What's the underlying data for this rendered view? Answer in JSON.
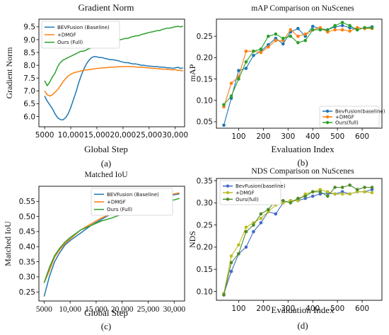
{
  "figure": {
    "background": "#ffffff"
  },
  "chart_data": [
    {
      "id": "gradient-norm",
      "type": "line",
      "title": "Gradient Norm",
      "xlabel": "Global Step",
      "ylabel": "Gradient Norm",
      "caption": "(a)",
      "xlim": [
        3900,
        31800
      ],
      "ylim": [
        5.6,
        9.8
      ],
      "xticks": [
        5000,
        10000,
        15000,
        20000,
        25000,
        30000
      ],
      "xtick_labels": [
        "5000",
        "10,000",
        "15,000",
        "20,000",
        "25,000",
        "30,000"
      ],
      "yticks": [
        6.0,
        6.5,
        7.0,
        7.5,
        8.0,
        8.5,
        9.0,
        9.5
      ],
      "ytick_labels": [
        "6.0",
        "6.5",
        "7.0",
        "7.5",
        "8.0",
        "8.5",
        "9.0",
        "9.5"
      ],
      "grid": false,
      "legend": "top-left",
      "series": [
        {
          "name": "BEVFusion (Baseline)",
          "color": "#1f77b4",
          "x": [
            5000,
            5500,
            6000,
            6500,
            7000,
            7500,
            8000,
            8500,
            9000,
            9500,
            10000,
            10500,
            11000,
            11500,
            12000,
            12500,
            13000,
            13500,
            14000,
            14500,
            15000,
            15500,
            16000,
            16500,
            17000,
            17500,
            18000,
            18500,
            19000,
            19500,
            20000,
            20500,
            21000,
            21500,
            22000,
            22500,
            23000,
            23500,
            24000,
            24500,
            25000,
            25500,
            26000,
            26500,
            27000,
            27500,
            28000,
            28500,
            29000,
            29500,
            30000,
            30500,
            31000,
            31500
          ],
          "y": [
            6.8,
            6.6,
            6.45,
            6.3,
            6.1,
            5.95,
            5.88,
            5.87,
            5.95,
            6.1,
            6.35,
            6.65,
            6.95,
            7.3,
            7.6,
            7.85,
            8.05,
            8.2,
            8.3,
            8.34,
            8.33,
            8.3,
            8.3,
            8.27,
            8.25,
            8.22,
            8.22,
            8.2,
            8.18,
            8.15,
            8.12,
            8.1,
            8.1,
            8.07,
            8.05,
            8.05,
            8.03,
            8.0,
            8.0,
            7.98,
            7.97,
            7.96,
            7.95,
            7.95,
            7.93,
            7.93,
            7.92,
            7.9,
            7.9,
            7.88,
            7.9,
            7.92,
            7.88,
            7.9
          ]
        },
        {
          "name": "+DMGF",
          "color": "#ff7f0e",
          "x": [
            5000,
            5500,
            6000,
            6500,
            7000,
            7500,
            8000,
            8500,
            9000,
            9500,
            10000,
            10500,
            11000,
            11500,
            12000,
            12500,
            13000,
            13500,
            14000,
            14500,
            15000,
            15500,
            16000,
            16500,
            17000,
            17500,
            18000,
            18500,
            19000,
            19500,
            20000,
            20500,
            21000,
            21500,
            22000,
            22500,
            23000,
            23500,
            24000,
            24500,
            25000,
            25500,
            26000,
            26500,
            27000,
            27500,
            28000,
            28500,
            29000,
            29500,
            30000,
            30500,
            31000,
            31500
          ],
          "y": [
            7.0,
            6.85,
            6.8,
            6.85,
            6.95,
            7.05,
            7.2,
            7.35,
            7.48,
            7.58,
            7.65,
            7.7,
            7.73,
            7.75,
            7.78,
            7.8,
            7.82,
            7.83,
            7.85,
            7.86,
            7.88,
            7.88,
            7.9,
            7.9,
            7.91,
            7.92,
            7.93,
            7.93,
            7.94,
            7.94,
            7.95,
            7.95,
            7.95,
            7.94,
            7.95,
            7.93,
            7.92,
            7.93,
            7.92,
            7.9,
            7.9,
            7.88,
            7.88,
            7.87,
            7.86,
            7.85,
            7.85,
            7.84,
            7.83,
            7.82,
            7.83,
            7.8,
            7.8,
            7.78
          ]
        },
        {
          "name": "Ours (Full)",
          "color": "#2ca02c",
          "x": [
            5000,
            5500,
            6000,
            6500,
            7000,
            7500,
            8000,
            8500,
            9000,
            9500,
            10000,
            10500,
            11000,
            11500,
            12000,
            12500,
            13000,
            13500,
            14000,
            14500,
            15000,
            15500,
            16000,
            16500,
            17000,
            17500,
            18000,
            18500,
            19000,
            19500,
            20000,
            20500,
            21000,
            21500,
            22000,
            22500,
            23000,
            23500,
            24000,
            24500,
            25000,
            25500,
            26000,
            26500,
            27000,
            27500,
            28000,
            28500,
            29000,
            29500,
            30000,
            30500,
            31000,
            31500
          ],
          "y": [
            7.4,
            7.2,
            7.35,
            7.55,
            7.7,
            7.95,
            8.1,
            8.2,
            8.25,
            8.3,
            8.35,
            8.4,
            8.45,
            8.5,
            8.55,
            8.55,
            8.6,
            8.65,
            8.68,
            8.7,
            8.75,
            8.75,
            8.8,
            8.85,
            8.85,
            8.9,
            8.92,
            8.95,
            8.95,
            9.0,
            9.02,
            9.05,
            9.05,
            9.1,
            9.12,
            9.15,
            9.15,
            9.2,
            9.22,
            9.25,
            9.28,
            9.3,
            9.32,
            9.35,
            9.35,
            9.4,
            9.42,
            9.45,
            9.45,
            9.48,
            9.5,
            9.52,
            9.5,
            9.52
          ]
        }
      ]
    },
    {
      "id": "map-comparison",
      "type": "line",
      "title": "mAP Comparison on NuScenes",
      "xlabel": "Evaluation Index",
      "ylabel": "mAP",
      "caption": "(b)",
      "xlim": [
        10,
        680
      ],
      "ylim": [
        0.035,
        0.29
      ],
      "xticks": [
        100,
        200,
        300,
        400,
        500,
        600
      ],
      "xtick_labels": [
        "100",
        "200",
        "300",
        "400",
        "500",
        "600"
      ],
      "yticks": [
        0.05,
        0.1,
        0.15,
        0.2,
        0.25
      ],
      "ytick_labels": [
        "0.05",
        "0.10",
        "0.15",
        "0.20",
        "0.25"
      ],
      "grid": false,
      "legend": "bottom-right",
      "series": [
        {
          "name": "BevFusion(baseline)",
          "color": "#1f77b4",
          "x": [
            40,
            70,
            100,
            130,
            160,
            190,
            220,
            250,
            280,
            310,
            340,
            370,
            400,
            430,
            460,
            490,
            520,
            550,
            580,
            610,
            640
          ],
          "y": [
            0.042,
            0.105,
            0.17,
            0.175,
            0.205,
            0.215,
            0.23,
            0.245,
            0.232,
            0.26,
            0.268,
            0.25,
            0.273,
            0.268,
            0.265,
            0.272,
            0.275,
            0.27,
            0.265,
            0.27,
            0.272
          ]
        },
        {
          "name": "+DMGF",
          "color": "#ff7f0e",
          "x": [
            40,
            70,
            100,
            130,
            160,
            190,
            220,
            250,
            280,
            310,
            340,
            370,
            400,
            430,
            460,
            490,
            520,
            550,
            580,
            610,
            640
          ],
          "y": [
            0.085,
            0.14,
            0.155,
            0.215,
            0.215,
            0.212,
            0.225,
            0.24,
            0.24,
            0.265,
            0.25,
            0.255,
            0.265,
            0.27,
            0.26,
            0.265,
            0.265,
            0.262,
            0.27,
            0.268,
            0.268
          ]
        },
        {
          "name": "Ours(full)",
          "color": "#2ca02c",
          "x": [
            40,
            70,
            100,
            130,
            160,
            190,
            220,
            250,
            280,
            310,
            340,
            370,
            400,
            430,
            460,
            490,
            520,
            550,
            580,
            610,
            640
          ],
          "y": [
            0.09,
            0.11,
            0.15,
            0.19,
            0.215,
            0.22,
            0.25,
            0.255,
            0.245,
            0.25,
            0.235,
            0.24,
            0.265,
            0.265,
            0.265,
            0.275,
            0.282,
            0.275,
            0.265,
            0.27,
            0.27
          ]
        }
      ]
    },
    {
      "id": "matched-iou",
      "type": "line",
      "title": "Matched  IoU",
      "xlabel": "Global Step",
      "ylabel": "Matched  IoU",
      "caption": "(c)",
      "xlim": [
        4000,
        32000
      ],
      "ylim": [
        0.22,
        0.6
      ],
      "xticks": [
        5000,
        10000,
        15000,
        20000,
        25000,
        30000
      ],
      "xtick_labels": [
        "5000",
        "10,000",
        "15,000",
        "20,000",
        "25,000",
        "30,000"
      ],
      "yticks": [
        0.25,
        0.3,
        0.35,
        0.4,
        0.45,
        0.5,
        0.55
      ],
      "ytick_labels": [
        "0.25",
        "0.30",
        "0.35",
        "0.40",
        "0.45",
        "0.50",
        "0.55"
      ],
      "grid": false,
      "legend": "top-center",
      "series": [
        {
          "name": "BEVFusion (Baseline)",
          "color": "#1f77b4",
          "x": [
            5000,
            6000,
            7000,
            8000,
            9000,
            10000,
            12000,
            14000,
            16000,
            18000,
            20000,
            22000,
            24000,
            26000,
            28000,
            30000,
            31000
          ],
          "y": [
            0.235,
            0.3,
            0.35,
            0.38,
            0.405,
            0.42,
            0.445,
            0.47,
            0.49,
            0.51,
            0.525,
            0.535,
            0.545,
            0.555,
            0.565,
            0.572,
            0.575
          ]
        },
        {
          "name": "+DMGF",
          "color": "#ff7f0e",
          "x": [
            5000,
            6000,
            7000,
            8000,
            9000,
            10000,
            12000,
            14000,
            16000,
            18000,
            20000,
            22000,
            24000,
            26000,
            28000,
            30000,
            31000
          ],
          "y": [
            0.28,
            0.32,
            0.365,
            0.39,
            0.41,
            0.425,
            0.455,
            0.475,
            0.495,
            0.51,
            0.522,
            0.535,
            0.545,
            0.556,
            0.565,
            0.575,
            0.578
          ]
        },
        {
          "name": "Ours (Full)",
          "color": "#2ca02c",
          "x": [
            5000,
            6000,
            7000,
            8000,
            9000,
            10000,
            12000,
            14000,
            16000,
            18000,
            20000,
            22000,
            24000,
            26000,
            28000,
            30000,
            31000
          ],
          "y": [
            0.28,
            0.33,
            0.37,
            0.395,
            0.415,
            0.43,
            0.455,
            0.47,
            0.485,
            0.495,
            0.508,
            0.518,
            0.527,
            0.537,
            0.547,
            0.555,
            0.56
          ]
        }
      ]
    },
    {
      "id": "nds-comparison",
      "type": "line",
      "title": "NDS Comparison on NuScenes",
      "xlabel": "Evaluation Index",
      "ylabel": "NDS",
      "caption": "(d)",
      "xlim": [
        10,
        680
      ],
      "ylim": [
        0.08,
        0.355
      ],
      "xticks": [
        100,
        200,
        300,
        400,
        500,
        600
      ],
      "xtick_labels": [
        "100",
        "200",
        "300",
        "400",
        "500",
        "600"
      ],
      "yticks": [
        0.1,
        0.15,
        0.2,
        0.25,
        0.3,
        0.35
      ],
      "ytick_labels": [
        "0.10",
        "0.15",
        "0.20",
        "0.25",
        "0.30",
        "0.35"
      ],
      "grid": false,
      "legend": "top-left",
      "series": [
        {
          "name": "BevFusion(baseline)",
          "color": "#4169c8",
          "x": [
            40,
            70,
            100,
            130,
            160,
            190,
            220,
            250,
            280,
            310,
            340,
            370,
            400,
            430,
            460,
            490,
            520,
            550,
            580,
            610,
            640
          ],
          "y": [
            0.095,
            0.145,
            0.185,
            0.2,
            0.235,
            0.255,
            0.28,
            0.275,
            0.3,
            0.305,
            0.305,
            0.31,
            0.315,
            0.32,
            0.322,
            0.32,
            0.325,
            0.32,
            0.325,
            0.325,
            0.33
          ]
        },
        {
          "name": "+DMGF",
          "color": "#bcbd22",
          "x": [
            40,
            70,
            100,
            130,
            160,
            190,
            220,
            250,
            280,
            310,
            340,
            370,
            400,
            430,
            460,
            490,
            520,
            550,
            580,
            610,
            640
          ],
          "y": [
            0.095,
            0.18,
            0.205,
            0.245,
            0.255,
            0.265,
            0.28,
            0.295,
            0.3,
            0.305,
            0.305,
            0.32,
            0.325,
            0.33,
            0.325,
            0.32,
            0.32,
            0.32,
            0.325,
            0.325,
            0.323
          ]
        },
        {
          "name": "Ours(full)",
          "color": "#4c8a2a",
          "x": [
            40,
            70,
            100,
            130,
            160,
            190,
            220,
            250,
            280,
            310,
            340,
            370,
            400,
            430,
            460,
            490,
            520,
            550,
            580,
            610,
            640
          ],
          "y": [
            0.092,
            0.165,
            0.185,
            0.235,
            0.25,
            0.275,
            0.285,
            0.305,
            0.305,
            0.3,
            0.31,
            0.315,
            0.325,
            0.325,
            0.315,
            0.335,
            0.335,
            0.34,
            0.33,
            0.335,
            0.335
          ]
        }
      ]
    }
  ]
}
